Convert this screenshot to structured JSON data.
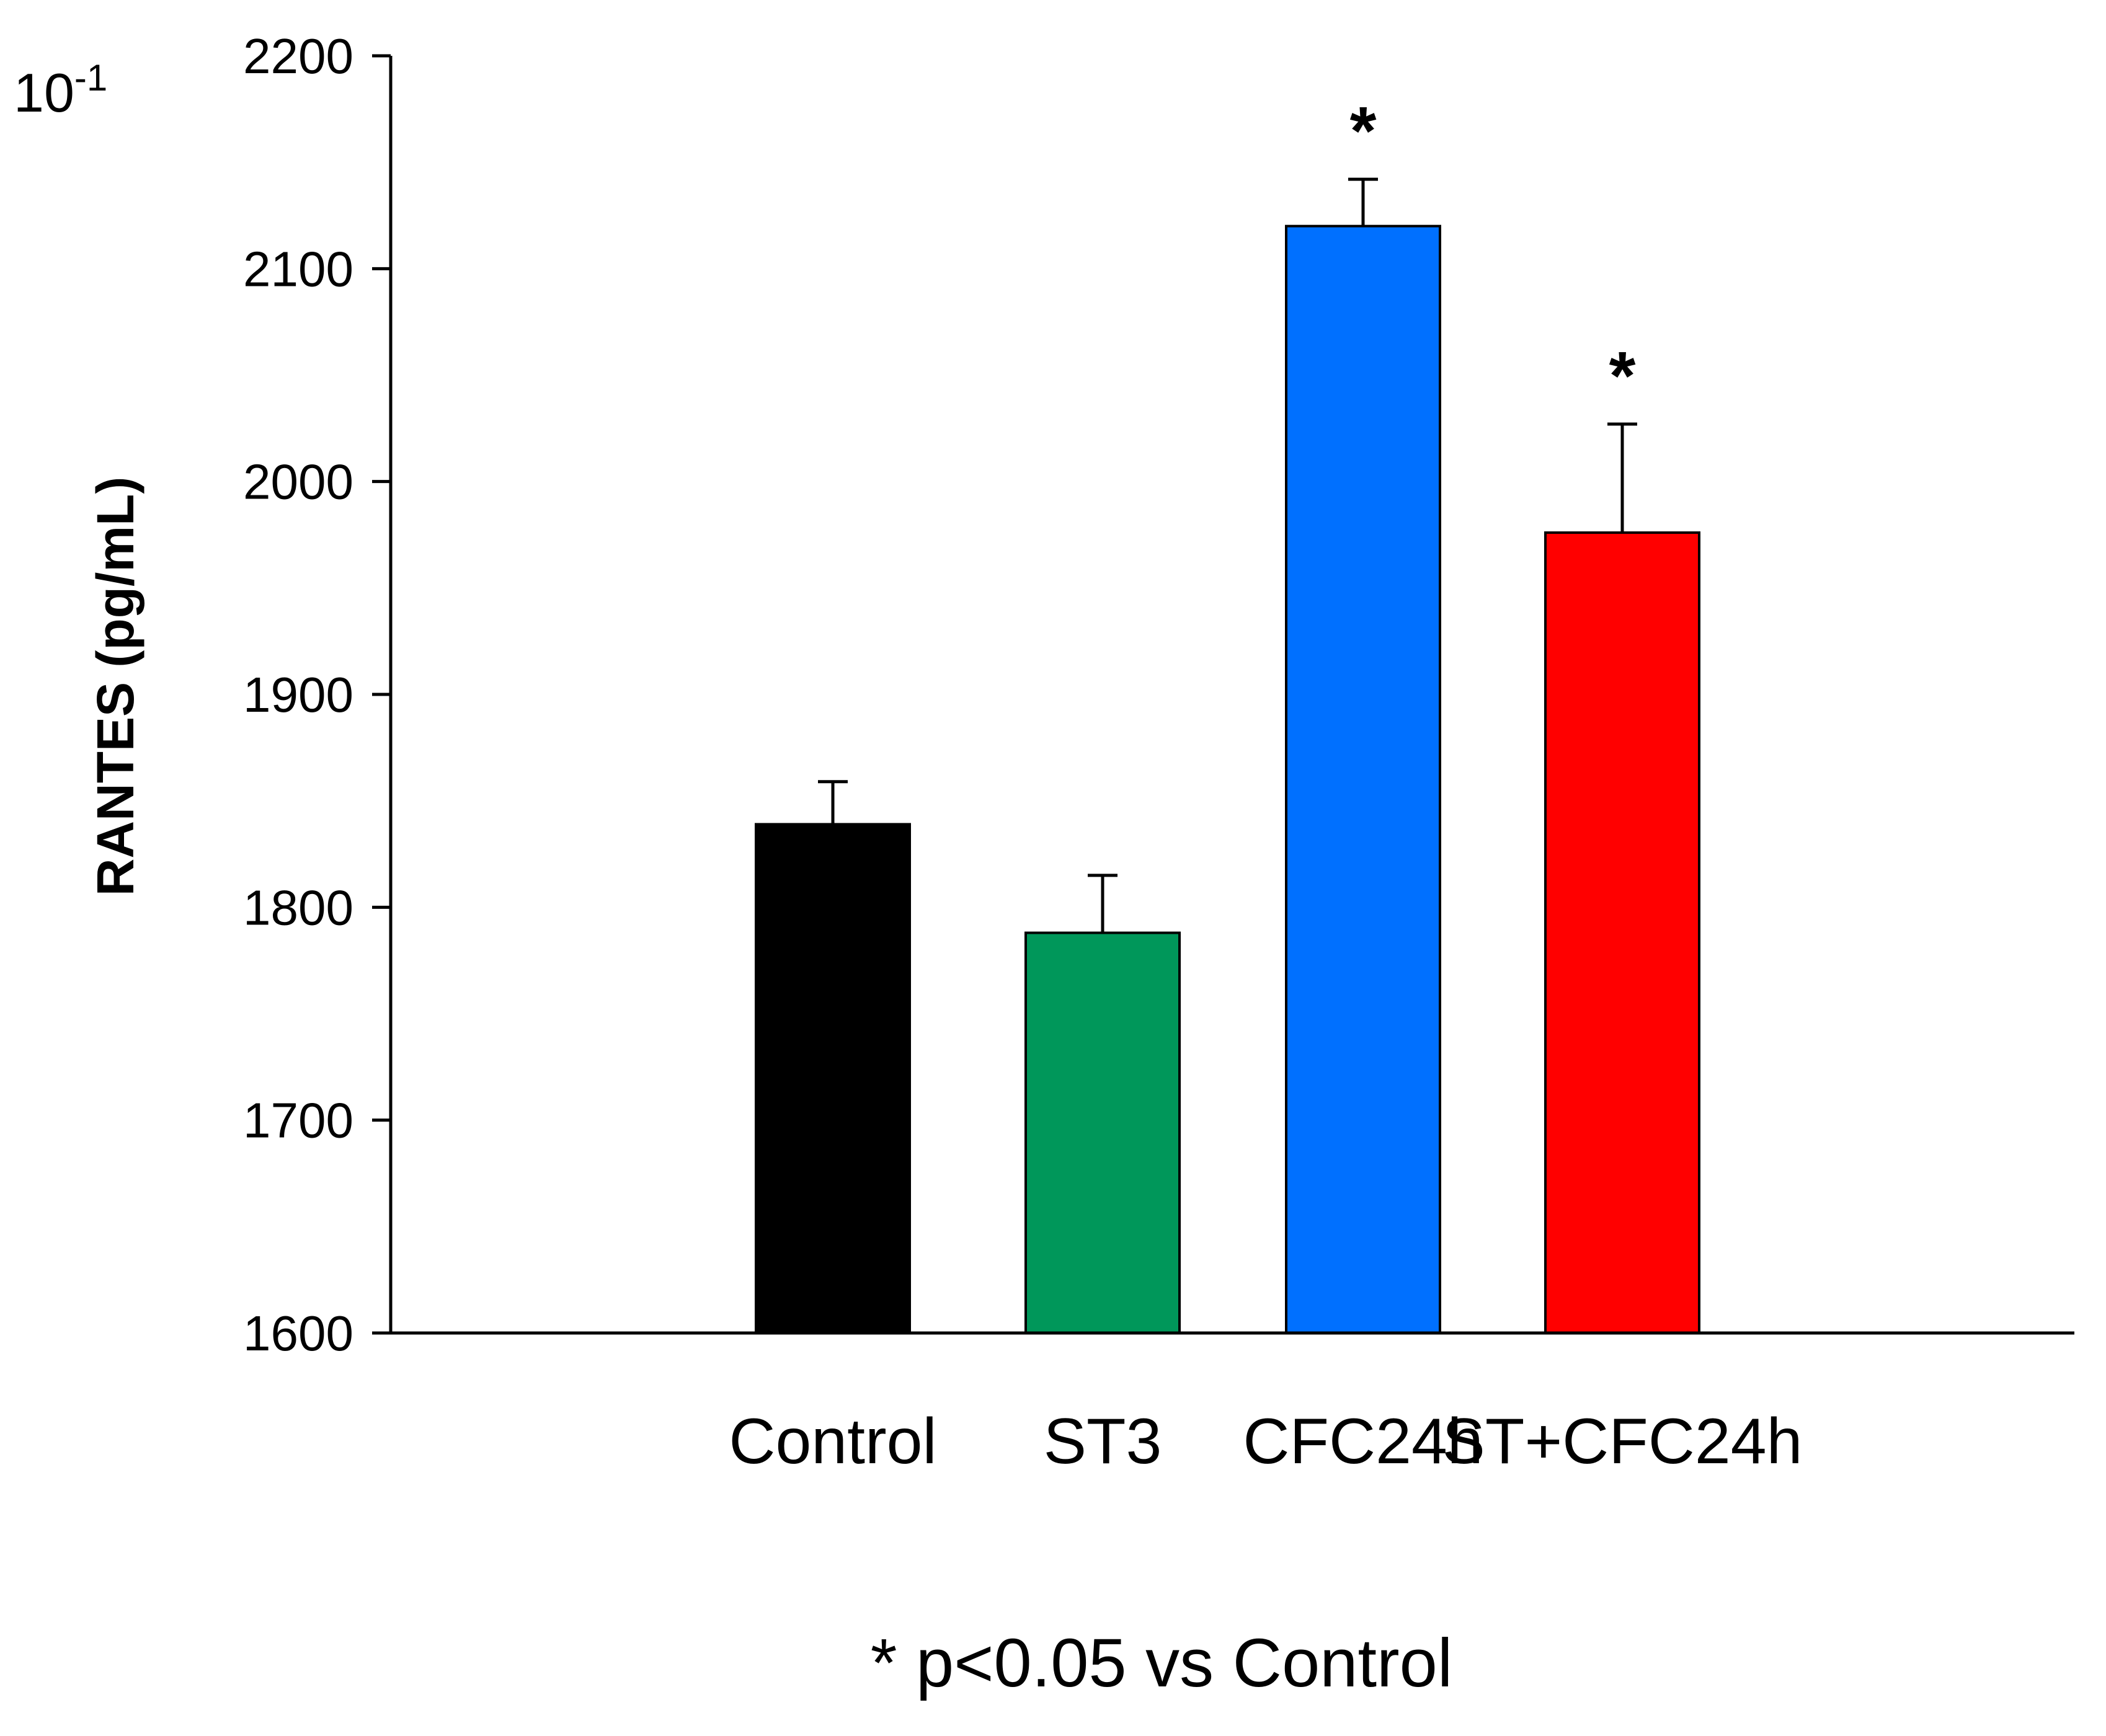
{
  "chart_data": {
    "type": "bar",
    "title": "",
    "xlabel": "",
    "ylabel": "RANTES (pg/mL)",
    "scale_label": "10",
    "scale_exponent": "-1",
    "ylim": [
      1600,
      2200
    ],
    "yticks": [
      "1600",
      "1700",
      "1800",
      "1900",
      "2000",
      "2100",
      "2200"
    ],
    "grid": false,
    "categories": [
      "Control",
      "ST3",
      "CFC24h",
      "ST+CFC24h"
    ],
    "values": [
      1839,
      1788,
      2120,
      1976
    ],
    "errors": [
      20,
      27,
      22,
      51
    ],
    "colors": [
      "#000000",
      "#00975a",
      "#0070ff",
      "#ff0000"
    ],
    "significance": [
      "",
      "",
      "*",
      "*"
    ],
    "footnote": "* p<0.05 vs Control"
  }
}
